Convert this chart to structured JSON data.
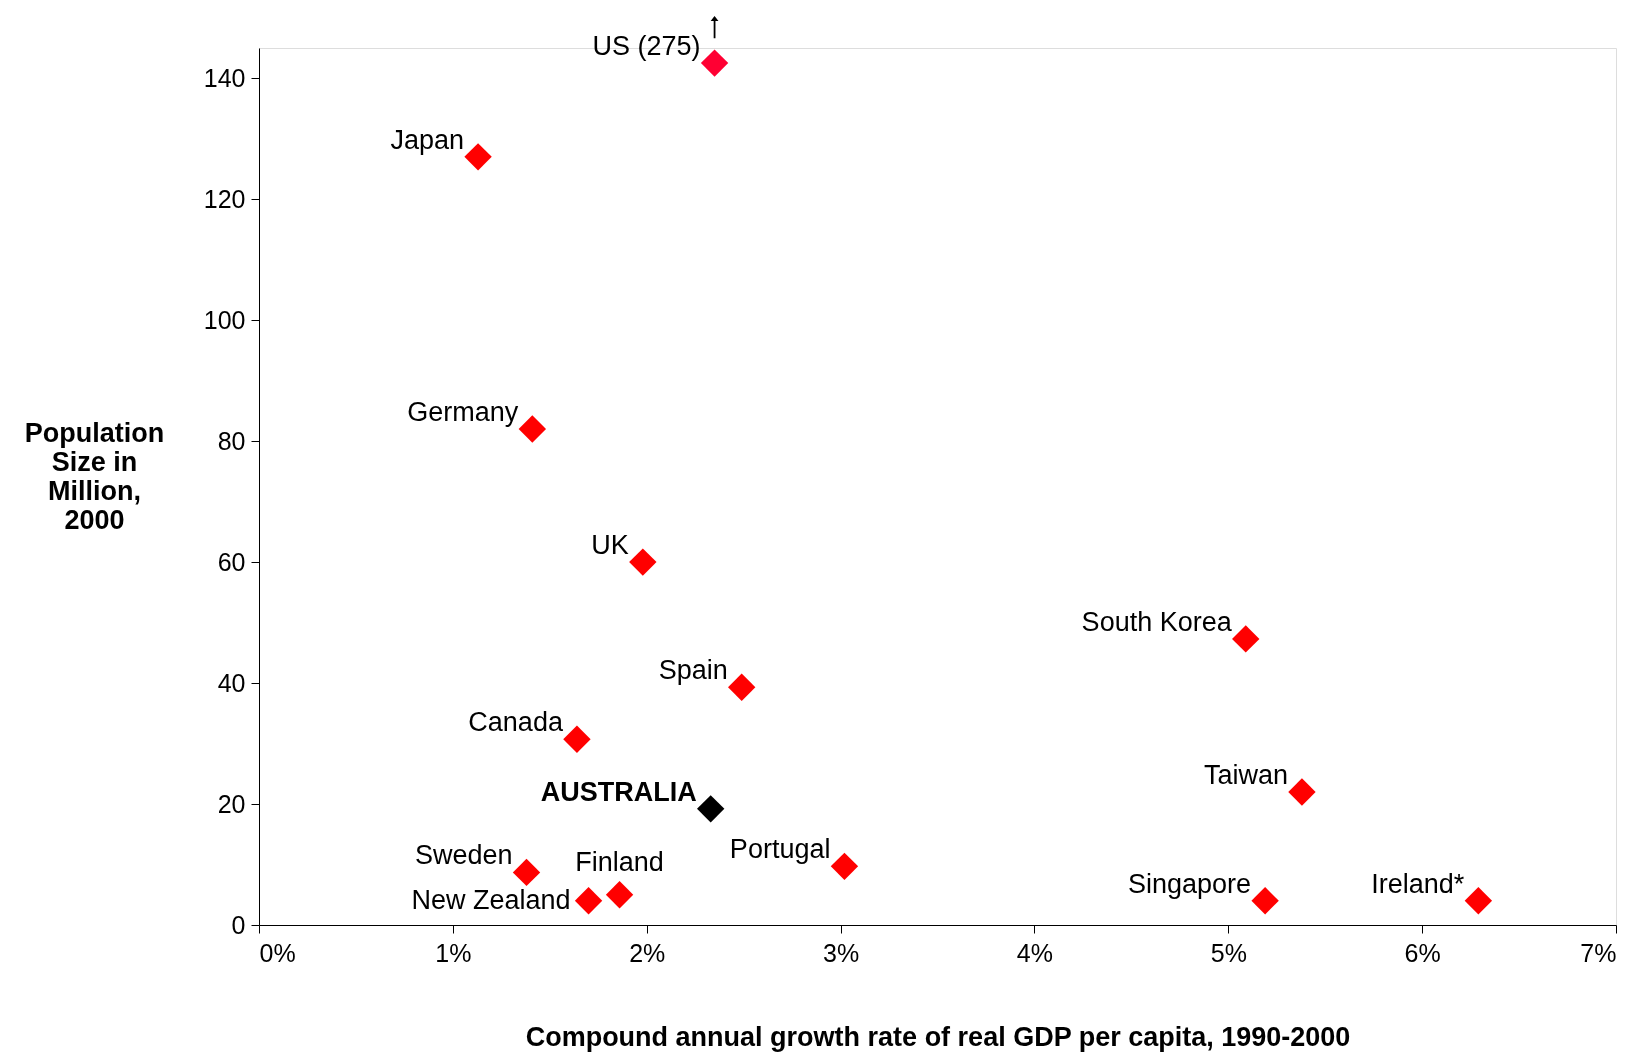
{
  "chart_data": {
    "type": "scatter",
    "xlabel": "Compound annual growth rate of real GDP per capita, 1990-2000",
    "ylabel": "Population Size in Million, 2000",
    "x": [
      2.35,
      1.13,
      1.41,
      1.98,
      5.09,
      2.49,
      1.64,
      2.33,
      5.38,
      1.38,
      3.02,
      1.86,
      1.7,
      5.19,
      6.29
    ],
    "values": [
      142.5,
      127,
      82,
      60,
      47.3,
      39.3,
      30.7,
      19.2,
      22.0,
      8.7,
      9.7,
      5.0,
      4.0,
      4.0,
      4.0
    ],
    "colors": [
      "#ff0033",
      "#ff0000",
      "#ff0000",
      "#ff0000",
      "#ff0000",
      "#ff0000",
      "#ff0000",
      "#000000",
      "#ff0000",
      "#ff0000",
      "#ff0000",
      "#ff0000",
      "#ff0000",
      "#ff0000",
      "#ff0000"
    ],
    "marker": "diamond",
    "xlim": [
      0,
      7
    ],
    "xticks": [
      {
        "value": 0,
        "label": "0%"
      },
      {
        "value": 1,
        "label": "1%"
      },
      {
        "value": 2,
        "label": "2%"
      },
      {
        "value": 3,
        "label": "3%"
      },
      {
        "value": 4,
        "label": "4%"
      },
      {
        "value": 5,
        "label": "5%"
      },
      {
        "value": 6,
        "label": "6%"
      },
      {
        "value": 7,
        "label": "7%"
      }
    ],
    "ylim": [
      0,
      145
    ],
    "yticks": [
      0,
      20,
      40,
      60,
      80,
      100,
      120,
      140
    ],
    "grid": false,
    "annotations": [
      {
        "text": "US (275)",
        "x": 2.35,
        "y": 142.5
      },
      {
        "text": "Japan",
        "x": 1.13,
        "y": 127
      },
      {
        "text": "Germany",
        "x": 1.41,
        "y": 82
      },
      {
        "text": "UK",
        "x": 1.98,
        "y": 60
      },
      {
        "text": "South Korea",
        "x": 5.09,
        "y": 47.3
      },
      {
        "text": "Spain",
        "x": 2.49,
        "y": 39.3
      },
      {
        "text": "Canada",
        "x": 1.64,
        "y": 30.7
      },
      {
        "text": "AUSTRALIA",
        "x": 2.33,
        "y": 19.2
      },
      {
        "text": "Taiwan",
        "x": 5.38,
        "y": 22.0
      },
      {
        "text": "Sweden",
        "x": 1.38,
        "y": 8.7
      },
      {
        "text": "Portugal",
        "x": 3.02,
        "y": 9.7
      },
      {
        "text": "Finland",
        "x": 1.86,
        "y": 5.0
      },
      {
        "text": "New Zealand",
        "x": 1.7,
        "y": 4.0
      },
      {
        "text": "Singapore",
        "x": 5.19,
        "y": 4.0
      },
      {
        "text": "Ireland*",
        "x": 6.29,
        "y": 4.0
      }
    ]
  }
}
